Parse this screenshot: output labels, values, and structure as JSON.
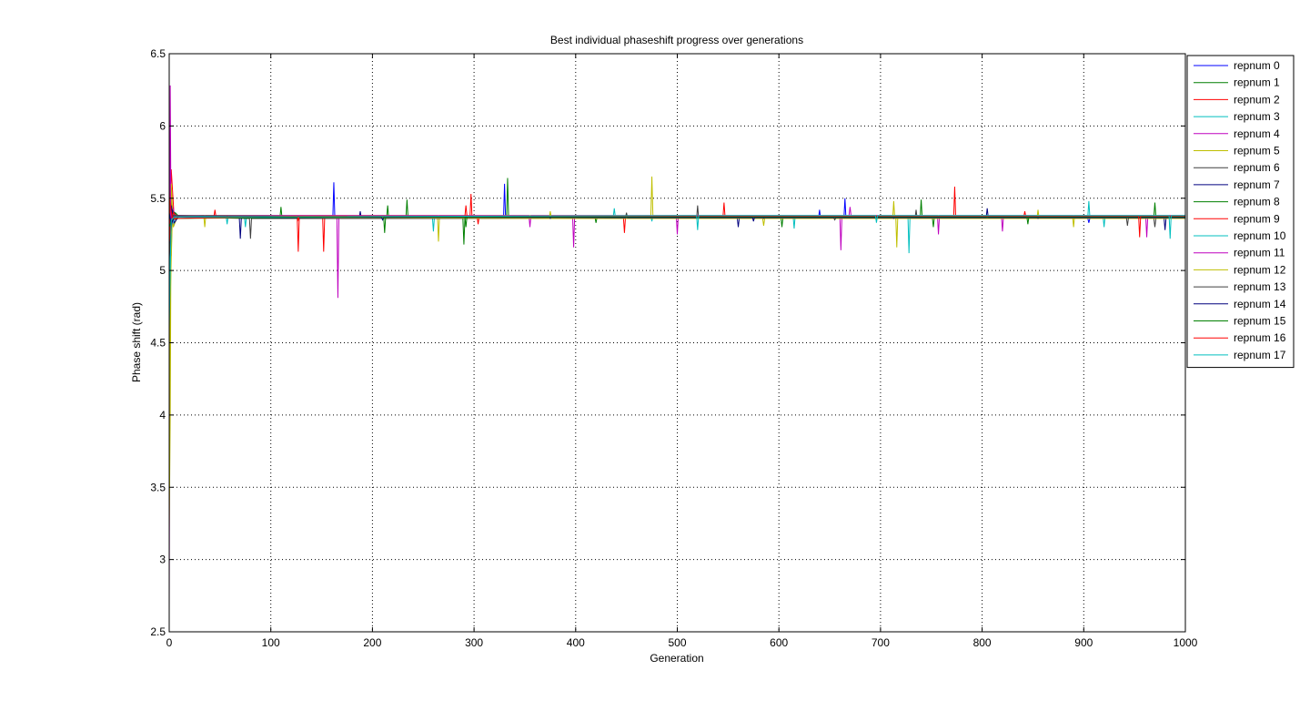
{
  "chart_data": {
    "type": "line",
    "title": "Best individual phaseshift progress over generations",
    "xlabel": "Generation",
    "ylabel": "Phase shift (rad)",
    "xlim": [
      0,
      1000
    ],
    "ylim": [
      2.5,
      6.5
    ],
    "xticks": [
      0,
      100,
      200,
      300,
      400,
      500,
      600,
      700,
      800,
      900,
      1000
    ],
    "yticks": [
      2.5,
      3,
      3.5,
      4,
      4.5,
      5,
      5.5,
      6,
      6.5
    ],
    "xtick_labels": [
      "0",
      "100",
      "200",
      "300",
      "400",
      "500",
      "600",
      "700",
      "800",
      "900",
      "1000"
    ],
    "ytick_labels": [
      "2.5",
      "3",
      "3.5",
      "4",
      "4.5",
      "5",
      "5.5",
      "6",
      "6.5"
    ],
    "grid": true,
    "legend_position": "top-right outside",
    "baseline": 5.37,
    "series": [
      {
        "name": "repnum 0",
        "color": "#0000ff",
        "initial": [
          [
            0,
            4.8
          ],
          [
            1,
            5.2
          ],
          [
            2,
            5.5
          ],
          [
            4,
            5.3
          ],
          [
            8,
            5.38
          ]
        ],
        "spikes": [
          [
            162,
            5.61
          ],
          [
            330,
            5.6
          ],
          [
            640,
            5.42
          ],
          [
            665,
            5.5
          ],
          [
            905,
            5.33
          ]
        ]
      },
      {
        "name": "repnum 1",
        "color": "#007f00",
        "initial": [
          [
            0,
            5.3
          ],
          [
            1,
            5.6
          ],
          [
            3,
            5.35
          ],
          [
            6,
            5.4
          ],
          [
            10,
            5.37
          ]
        ],
        "spikes": [
          [
            110,
            5.44
          ],
          [
            215,
            5.45
          ],
          [
            290,
            5.18
          ],
          [
            333,
            5.64
          ],
          [
            740,
            5.49
          ]
        ]
      },
      {
        "name": "repnum 2",
        "color": "#ff0000",
        "initial": [
          [
            0,
            5.8
          ],
          [
            1,
            5.4
          ],
          [
            2,
            5.7
          ],
          [
            5,
            5.35
          ],
          [
            9,
            5.37
          ]
        ],
        "spikes": [
          [
            127,
            5.13
          ],
          [
            152,
            5.13
          ],
          [
            297,
            5.53
          ],
          [
            448,
            5.26
          ],
          [
            773,
            5.58
          ]
        ]
      },
      {
        "name": "repnum 3",
        "color": "#00bfbf",
        "initial": [
          [
            0,
            4.7
          ],
          [
            1,
            5.1
          ],
          [
            3,
            5.4
          ],
          [
            7,
            5.36
          ]
        ],
        "spikes": [
          [
            75,
            5.3
          ],
          [
            260,
            5.27
          ],
          [
            438,
            5.43
          ],
          [
            728,
            5.12
          ],
          [
            905,
            5.48
          ]
        ]
      },
      {
        "name": "repnum 4",
        "color": "#bf00bf",
        "initial": [
          [
            0,
            2.65
          ],
          [
            1,
            6.28
          ],
          [
            2,
            5.1
          ],
          [
            3,
            5.45
          ],
          [
            6,
            5.37
          ]
        ],
        "spikes": [
          [
            166,
            4.81
          ],
          [
            398,
            5.16
          ],
          [
            661,
            5.14
          ],
          [
            820,
            5.27
          ],
          [
            962,
            5.23
          ]
        ]
      },
      {
        "name": "repnum 5",
        "color": "#bfbf00",
        "initial": [
          [
            0,
            3.2
          ],
          [
            1,
            4.0
          ],
          [
            2,
            5.6
          ],
          [
            4,
            5.3
          ],
          [
            8,
            5.37
          ]
        ],
        "spikes": [
          [
            35,
            5.3
          ],
          [
            265,
            5.2
          ],
          [
            475,
            5.65
          ],
          [
            716,
            5.16
          ],
          [
            890,
            5.3
          ]
        ]
      },
      {
        "name": "repnum 6",
        "color": "#3f3f3f",
        "initial": [
          [
            0,
            4.4
          ],
          [
            1,
            5.3
          ],
          [
            3,
            5.42
          ],
          [
            8,
            5.37
          ]
        ],
        "spikes": [
          [
            80,
            5.22
          ],
          [
            520,
            5.45
          ],
          [
            735,
            5.42
          ],
          [
            970,
            5.3
          ]
        ]
      },
      {
        "name": "repnum 7",
        "color": "#00007f",
        "initial": [
          [
            0,
            5.0
          ],
          [
            2,
            5.45
          ],
          [
            5,
            5.33
          ],
          [
            9,
            5.37
          ]
        ],
        "spikes": [
          [
            70,
            5.22
          ],
          [
            188,
            5.41
          ],
          [
            560,
            5.3
          ],
          [
            980,
            5.28
          ]
        ]
      },
      {
        "name": "repnum 8",
        "color": "#007f00",
        "initial": [
          [
            0,
            5.2
          ],
          [
            2,
            5.38
          ],
          [
            6,
            5.37
          ]
        ],
        "spikes": [
          [
            234,
            5.49
          ],
          [
            420,
            5.33
          ],
          [
            603,
            5.3
          ],
          [
            752,
            5.3
          ]
        ]
      },
      {
        "name": "repnum 9",
        "color": "#ff0000",
        "initial": [
          [
            0,
            5.6
          ],
          [
            1,
            5.2
          ],
          [
            4,
            5.4
          ],
          [
            8,
            5.37
          ]
        ],
        "spikes": [
          [
            45,
            5.42
          ],
          [
            304,
            5.32
          ],
          [
            546,
            5.47
          ],
          [
            842,
            5.41
          ]
        ]
      },
      {
        "name": "repnum 10",
        "color": "#00bfbf",
        "initial": [
          [
            0,
            4.9
          ],
          [
            2,
            5.3
          ],
          [
            6,
            5.37
          ]
        ],
        "spikes": [
          [
            57,
            5.32
          ],
          [
            475,
            5.34
          ],
          [
            615,
            5.29
          ],
          [
            920,
            5.3
          ]
        ]
      },
      {
        "name": "repnum 11",
        "color": "#bf00bf",
        "initial": [
          [
            0,
            5.9
          ],
          [
            2,
            5.3
          ],
          [
            5,
            5.38
          ]
        ],
        "spikes": [
          [
            355,
            5.3
          ],
          [
            500,
            5.25
          ],
          [
            670,
            5.44
          ],
          [
            757,
            5.25
          ]
        ]
      },
      {
        "name": "repnum 12",
        "color": "#bfbf00",
        "initial": [
          [
            0,
            3.8
          ],
          [
            1,
            4.8
          ],
          [
            3,
            5.35
          ],
          [
            7,
            5.37
          ]
        ],
        "spikes": [
          [
            375,
            5.41
          ],
          [
            585,
            5.31
          ],
          [
            713,
            5.48
          ],
          [
            855,
            5.42
          ]
        ]
      },
      {
        "name": "repnum 13",
        "color": "#3f3f3f",
        "initial": [
          [
            0,
            5.1
          ],
          [
            3,
            5.38
          ]
        ],
        "spikes": [
          [
            450,
            5.4
          ],
          [
            655,
            5.35
          ],
          [
            943,
            5.31
          ]
        ]
      },
      {
        "name": "repnum 14",
        "color": "#00007f",
        "initial": [
          [
            0,
            5.4
          ],
          [
            2,
            5.32
          ],
          [
            5,
            5.37
          ]
        ],
        "spikes": [
          [
            210,
            5.35
          ],
          [
            575,
            5.34
          ],
          [
            805,
            5.43
          ]
        ]
      },
      {
        "name": "repnum 15",
        "color": "#007f00",
        "initial": [
          [
            0,
            5.3
          ],
          [
            3,
            5.36
          ]
        ],
        "spikes": [
          [
            212,
            5.26
          ],
          [
            292,
            5.3
          ],
          [
            970,
            5.47
          ],
          [
            845,
            5.32
          ]
        ]
      },
      {
        "name": "repnum 16",
        "color": "#ff0000",
        "initial": [
          [
            0,
            5.5
          ],
          [
            3,
            5.36
          ]
        ],
        "spikes": [
          [
            127,
            5.35
          ],
          [
            292,
            5.45
          ],
          [
            955,
            5.23
          ]
        ]
      },
      {
        "name": "repnum 17",
        "color": "#00bfbf",
        "initial": [
          [
            0,
            4.6
          ],
          [
            2,
            5.35
          ],
          [
            5,
            5.37
          ]
        ],
        "spikes": [
          [
            520,
            5.28
          ],
          [
            696,
            5.33
          ],
          [
            985,
            5.22
          ]
        ]
      }
    ]
  }
}
